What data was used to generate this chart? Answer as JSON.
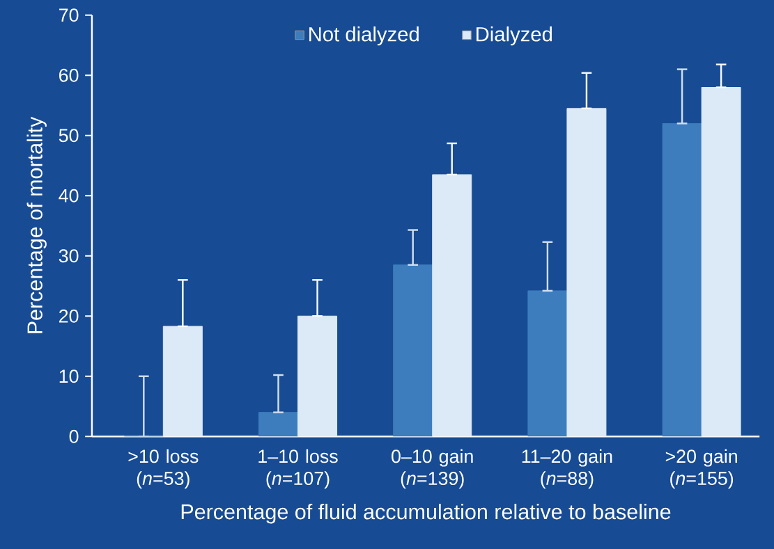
{
  "chart_data": {
    "type": "bar",
    "xlabel": "Percentage of fluid accumulation relative to baseline",
    "ylabel": "Percentage of mortality",
    "categories": [
      ">10 loss (*n*=53)",
      "1–10 loss (*n*=107)",
      "0–10 gain (*n*=139)",
      "11–20 gain (*n*=88)",
      ">20 gain (*n*=155)"
    ],
    "series": [
      {
        "name": "Not dialyzed",
        "color": "#3d7dbd",
        "values": [
          0,
          4,
          28.5,
          24.2,
          52
        ],
        "errors": [
          [
            0,
            10
          ],
          [
            4,
            10.2
          ],
          [
            28.5,
            34.3
          ],
          [
            24.2,
            32.3
          ],
          [
            52,
            61
          ]
        ]
      },
      {
        "name": "Dialyzed",
        "color": "#dce9f6",
        "values": [
          18.3,
          20,
          43.5,
          54.5,
          58
        ],
        "errors": [
          [
            18.3,
            26
          ],
          [
            20,
            26
          ],
          [
            43.5,
            48.7
          ],
          [
            54.5,
            60.4
          ],
          [
            58,
            61.8
          ]
        ]
      }
    ],
    "ylim": [
      0,
      70
    ],
    "yticks": [
      0,
      10,
      20,
      30,
      40,
      50,
      60,
      70
    ],
    "legend": "top"
  }
}
